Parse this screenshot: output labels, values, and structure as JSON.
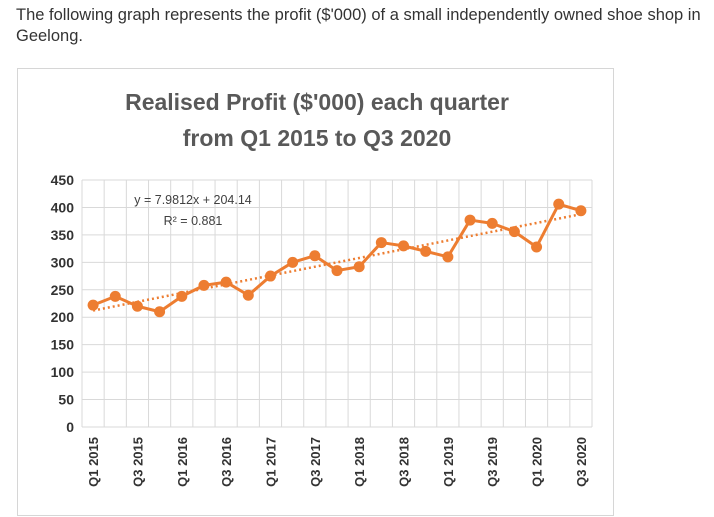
{
  "intro_text": "The following graph represents the profit ($'000) of a small independently owned shoe shop in Geelong.",
  "chart_data": {
    "type": "line",
    "title_line1": "Realised Profit ($'000) each quarter",
    "title_line2": "from Q1 2015 to Q3 2020",
    "xlabel": "",
    "ylabel": "",
    "ylim": [
      0,
      450
    ],
    "y_ticks": [
      0,
      50,
      100,
      150,
      200,
      250,
      300,
      350,
      400,
      450
    ],
    "categories": [
      "Q1 2015",
      "Q2 2015",
      "Q3 2015",
      "Q4 2015",
      "Q1 2016",
      "Q2 2016",
      "Q3 2016",
      "Q4 2016",
      "Q1 2017",
      "Q2 2017",
      "Q3 2017",
      "Q4 2017",
      "Q1 2018",
      "Q2 2018",
      "Q3 2018",
      "Q4 2018",
      "Q1 2019",
      "Q2 2019",
      "Q3 2019",
      "Q4 2019",
      "Q1 2020",
      "Q2 2020",
      "Q3 2020"
    ],
    "x_tick_labels": [
      "Q1 2015",
      "Q3 2015",
      "Q1 2016",
      "Q3 2016",
      "Q1 2017",
      "Q3 2017",
      "Q1 2018",
      "Q3 2018",
      "Q1 2019",
      "Q3 2019",
      "Q1 2020",
      "Q3 2020"
    ],
    "series": [
      {
        "name": "Profit",
        "values": [
          222,
          238,
          220,
          210,
          238,
          258,
          264,
          240,
          275,
          300,
          312,
          285,
          292,
          336,
          330,
          320,
          310,
          377,
          371,
          356,
          328,
          406,
          394
        ]
      }
    ],
    "trendline": {
      "type": "linear",
      "slope": 7.9812,
      "intercept": 204.14
    },
    "equation_text": "y = 7.9812x + 204.14",
    "r2_text": "R² = 0.881",
    "grid": true,
    "colors": {
      "series": "#ed7d31",
      "grid": "#d9d9d9",
      "title": "#595959"
    }
  }
}
